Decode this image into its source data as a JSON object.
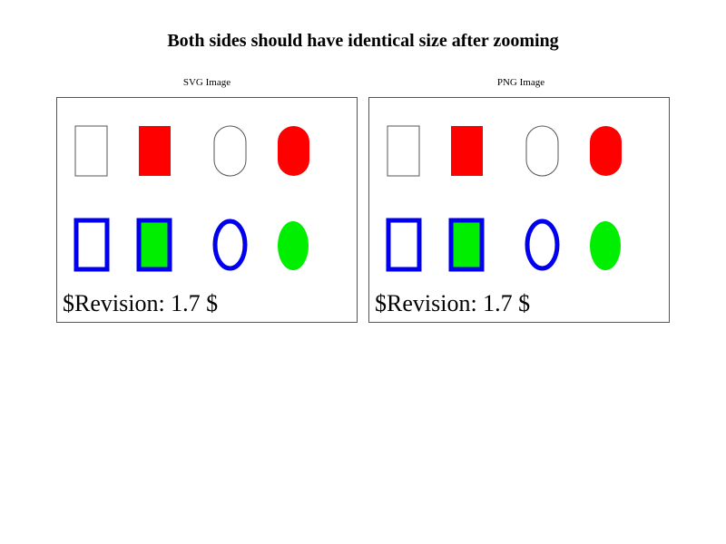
{
  "page": {
    "title": "Both sides should have identical size after zooming"
  },
  "panels": [
    {
      "caption": "SVG Image",
      "revision_text": "$Revision: 1.7 $"
    },
    {
      "caption": "PNG Image",
      "revision_text": "$Revision: 1.7 $"
    }
  ],
  "colors": {
    "red": "#ff0000",
    "blue": "#0000ee",
    "green": "#00ee00",
    "outline": "#555555"
  },
  "shapes": {
    "top_row": [
      "outlined-rectangle",
      "red-filled-rectangle",
      "outlined-rounded-rectangle",
      "red-filled-rounded-rectangle"
    ],
    "bottom_row": [
      "blue-outlined-rectangle",
      "blue-outlined-green-filled-rectangle",
      "blue-outlined-ellipse",
      "green-filled-ellipse"
    ]
  }
}
